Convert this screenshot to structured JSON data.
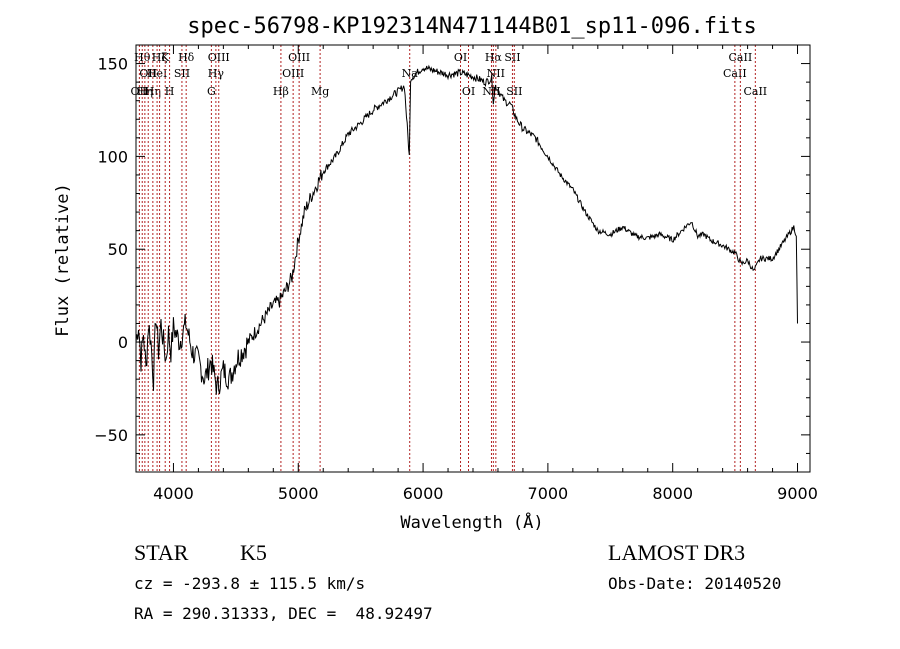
{
  "chart_data": {
    "type": "line",
    "title": "spec-56798-KP192314N471144B01_sp11-096.fits",
    "xlabel": "Wavelength (Å)",
    "ylabel": "Flux (relative)",
    "xlim": [
      3700,
      9100
    ],
    "ylim": [
      -70,
      160
    ],
    "xticks": [
      4000,
      5000,
      6000,
      7000,
      8000,
      9000
    ],
    "yticks": [
      -50,
      0,
      50,
      100,
      150
    ],
    "grid": false,
    "line_color": "#000000",
    "marker_color": "#b22222",
    "series": [
      {
        "x": [
          3700,
          3720,
          3740,
          3760,
          3780,
          3800,
          3820,
          3840,
          3860,
          3880,
          3900,
          3920,
          3940,
          3960,
          3980,
          4000,
          4050,
          4100,
          4150,
          4200,
          4250,
          4300,
          4350,
          4400,
          4450,
          4500,
          4550,
          4600,
          4650,
          4700,
          4750,
          4800,
          4850,
          4900,
          4950,
          5000,
          5050,
          5100,
          5150,
          5200,
          5300,
          5400,
          5500,
          5600,
          5700,
          5800,
          5850,
          5890,
          5900,
          5950,
          6000,
          6100,
          6200,
          6300,
          6400,
          6500,
          6550,
          6563,
          6580,
          6650,
          6700,
          6750,
          6800,
          6900,
          7000,
          7100,
          7200,
          7300,
          7400,
          7500,
          7600,
          7700,
          7800,
          7900,
          8000,
          8100,
          8150,
          8200,
          8250,
          8300,
          8400,
          8500,
          8550,
          8600,
          8650,
          8700,
          8800,
          8850,
          8900,
          8950,
          8970,
          8990,
          9000
        ],
        "y": [
          0,
          10,
          -10,
          5,
          -15,
          10,
          0,
          -20,
          15,
          -5,
          10,
          0,
          -10,
          5,
          -5,
          8,
          0,
          10,
          -5,
          -10,
          -20,
          -10,
          -25,
          -15,
          -20,
          -10,
          -5,
          0,
          5,
          10,
          15,
          20,
          22,
          28,
          35,
          55,
          70,
          78,
          85,
          92,
          100,
          112,
          118,
          125,
          130,
          135,
          138,
          100,
          142,
          145,
          148,
          146,
          144,
          145,
          143,
          140,
          142,
          130,
          138,
          130,
          128,
          120,
          115,
          110,
          100,
          90,
          82,
          70,
          60,
          58,
          62,
          57,
          56,
          58,
          55,
          62,
          65,
          57,
          58,
          55,
          52,
          48,
          42,
          44,
          38,
          45,
          45,
          50,
          55,
          60,
          62,
          58,
          10
        ]
      }
    ],
    "lines": [
      {
        "wave": 3727,
        "label": "OII",
        "row": 3
      },
      {
        "wave": 3750,
        "label": "Hθ",
        "row": 1
      },
      {
        "wave": 3771,
        "label": "Hη",
        "row": 3
      },
      {
        "wave": 3798,
        "label": "OII",
        "row": 2
      },
      {
        "wave": 3835,
        "label": "Hη",
        "row": 3
      },
      {
        "wave": 3869,
        "label": "HeI",
        "row": 2
      },
      {
        "wave": 3889,
        "label": "Hζ",
        "row": 1
      },
      {
        "wave": 3934,
        "label": "K",
        "row": 1
      },
      {
        "wave": 3969,
        "label": "H",
        "row": 3
      },
      {
        "wave": 4068,
        "label": "SII",
        "row": 2
      },
      {
        "wave": 4102,
        "label": "Hδ",
        "row": 1
      },
      {
        "wave": 4304,
        "label": "G",
        "row": 3
      },
      {
        "wave": 4340,
        "label": "Hγ",
        "row": 2
      },
      {
        "wave": 4363,
        "label": "OIII",
        "row": 1
      },
      {
        "wave": 4861,
        "label": "Hβ",
        "row": 3
      },
      {
        "wave": 4959,
        "label": "OIII",
        "row": 2
      },
      {
        "wave": 5007,
        "label": "OIII",
        "row": 1
      },
      {
        "wave": 5175,
        "label": "Mg",
        "row": 3
      },
      {
        "wave": 5893,
        "label": "Na",
        "row": 2
      },
      {
        "wave": 6300,
        "label": "OI",
        "row": 1
      },
      {
        "wave": 6364,
        "label": "OI",
        "row": 3
      },
      {
        "wave": 6548,
        "label": "NII",
        "row": 3
      },
      {
        "wave": 6563,
        "label": "Hα",
        "row": 1
      },
      {
        "wave": 6583,
        "label": "NII",
        "row": 2
      },
      {
        "wave": 6716,
        "label": "SII",
        "row": 1
      },
      {
        "wave": 6731,
        "label": "SII",
        "row": 3
      },
      {
        "wave": 8498,
        "label": "CaII",
        "row": 2
      },
      {
        "wave": 8542,
        "label": "CaII",
        "row": 1
      },
      {
        "wave": 8662,
        "label": "CaII",
        "row": 3
      }
    ]
  },
  "info": {
    "class": "STAR",
    "subclass": "K5",
    "survey": "LAMOST DR3",
    "cz": "cz = -293.8 ± 115.5 km/s",
    "obs_date": "Obs-Date: 20140520",
    "radec": "RA = 290.31333, DEC =  48.92497"
  }
}
